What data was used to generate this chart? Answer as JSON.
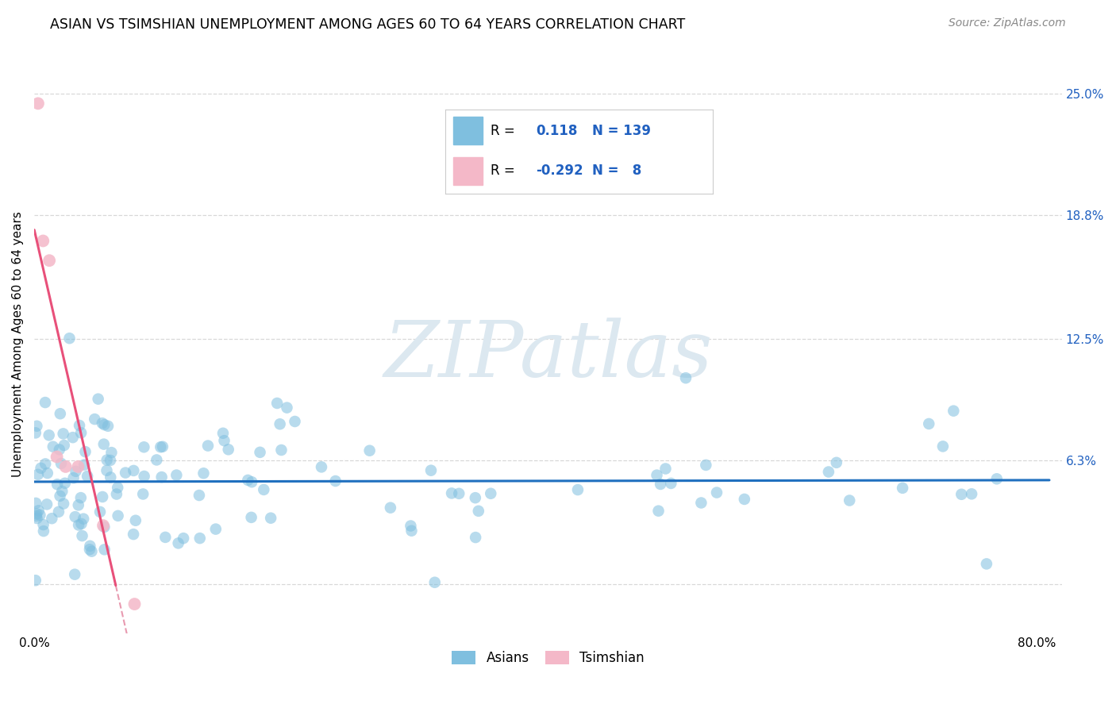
{
  "title": "ASIAN VS TSIMSHIAN UNEMPLOYMENT AMONG AGES 60 TO 64 YEARS CORRELATION CHART",
  "source": "Source: ZipAtlas.com",
  "ylabel": "Unemployment Among Ages 60 to 64 years",
  "xlim": [
    0.0,
    0.82
  ],
  "ylim": [
    -0.025,
    0.27
  ],
  "xticks": [
    0.0,
    0.1,
    0.2,
    0.3,
    0.4,
    0.5,
    0.6,
    0.7,
    0.8
  ],
  "xticklabels": [
    "0.0%",
    "",
    "",
    "",
    "",
    "",
    "",
    "",
    "80.0%"
  ],
  "ytick_values": [
    0.0,
    0.063,
    0.125,
    0.188,
    0.25
  ],
  "ytick_labels": [
    "",
    "6.3%",
    "12.5%",
    "18.8%",
    "25.0%"
  ],
  "asian_R": 0.118,
  "asian_N": 139,
  "tsimshian_R": -0.292,
  "tsimshian_N": 8,
  "asian_color": "#7fbfdf",
  "tsimshian_color": "#f4b8c8",
  "asian_trend_color": "#2070bf",
  "tsimshian_trend_color": "#e8507a",
  "tsimshian_dashed_color": "#e89ab0",
  "watermark_text": "ZIPatlas",
  "watermark_color": "#dce8f0",
  "background_color": "#ffffff",
  "grid_color": "#d8d8d8",
  "title_fontsize": 12.5,
  "source_fontsize": 10,
  "label_fontsize": 11,
  "tick_fontsize": 11,
  "legend_fontsize": 12,
  "asian_seed": 12,
  "tsimshian_seed": 7
}
